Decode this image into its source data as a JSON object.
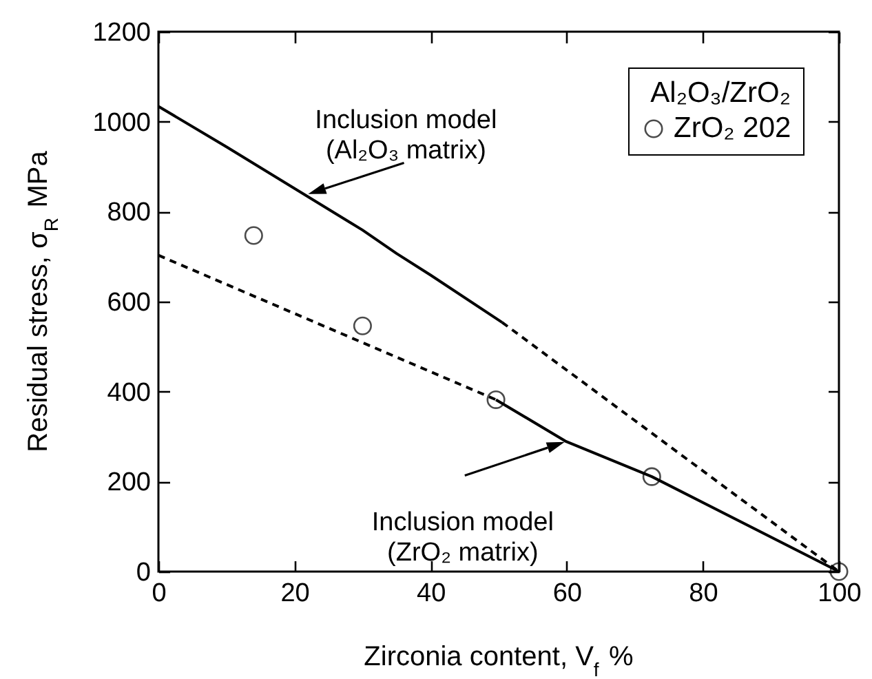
{
  "chart_data": {
    "type": "line",
    "xlabel": "Zirconia content, V$_{f}$ %",
    "ylabel": "Residual stress, σ$_{R}$ MPa",
    "legend_title": "Al₂O₃/ZrO₂",
    "legend": "top right",
    "grid": false,
    "xlim": [
      0,
      100
    ],
    "xticks": [
      0,
      20,
      40,
      60,
      80,
      100
    ],
    "ylim": [
      0,
      1200
    ],
    "yticks": [
      0,
      200,
      400,
      600,
      800,
      1000,
      1200
    ],
    "series": [
      {
        "color": "#000000",
        "line_style": "solid",
        "x": [
          0,
          10,
          30,
          35,
          40,
          50.5
        ],
        "values": [
          1034,
          944,
          759,
          707,
          659,
          554
        ]
      },
      {
        "color": "#000000",
        "line_style": "dashed",
        "x": [
          50.5,
          100
        ],
        "values": [
          554,
          0
        ]
      },
      {
        "color": "#000000",
        "line_style": "dashed",
        "x": [
          0,
          49.6
        ],
        "values": [
          703,
          382
        ]
      },
      {
        "color": "#000000",
        "line_style": "solid",
        "x": [
          49.6,
          59.8,
          72.5,
          100
        ],
        "values": [
          382,
          290,
          211,
          0
        ]
      },
      {
        "type": "scatter",
        "name": "ZrO₂ 202",
        "color": "#000000",
        "marker": "circle",
        "x": [
          14,
          30,
          49.6,
          72.5,
          100
        ],
        "values": [
          747,
          546,
          382,
          211,
          0
        ]
      }
    ],
    "annotations": [
      {
        "text": "Inclusion model\n(Al₂O₃ matrix)",
        "x": 22,
        "y": 839
      },
      {
        "text": "Inclusion model\n(ZrO₂ matrix)",
        "x": 59.7,
        "y": 288
      }
    ]
  }
}
